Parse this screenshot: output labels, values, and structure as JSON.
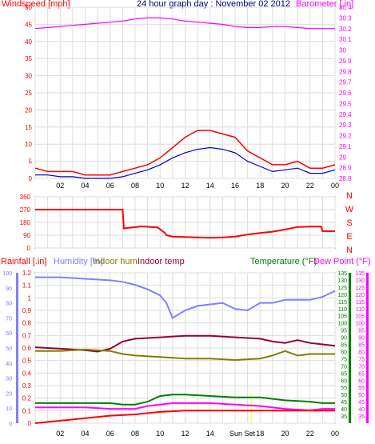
{
  "chart_data": [
    {
      "type": "line",
      "title": "24 hour graph day : November 02 2012",
      "ylabel_left": "Windspeed [mph]",
      "ylabel_right": "Barometer [.in]",
      "x_ticks": [
        "02",
        "04",
        "06",
        "08",
        "10",
        "12",
        "14",
        "16",
        "18",
        "20",
        "22",
        "00"
      ],
      "ylim_left": [
        0,
        50
      ],
      "yticks_left": [
        "0",
        "5",
        "10",
        "15",
        "20",
        "25",
        "30",
        "35",
        "40",
        "45",
        "50"
      ],
      "ylim_right": [
        28.8,
        30.4
      ],
      "yticks_right": [
        "28.8",
        "28.9",
        "29",
        "29.1",
        "29.2",
        "29.3",
        "29.4",
        "29.5",
        "29.6",
        "29.7",
        "29.8",
        "29.9",
        "30",
        "30.1",
        "30.2",
        "30.3",
        "30.4"
      ],
      "colors": {
        "gust": "#ff0000",
        "avg": "#0000cc",
        "baro": "#ff00ff"
      },
      "series": [
        {
          "axis": "right",
          "color": "#ff00ff",
          "x": [
            0,
            1,
            2,
            3,
            4,
            5,
            6,
            7,
            8,
            9,
            10,
            11,
            12,
            13,
            14,
            15,
            16,
            17,
            18,
            19,
            20,
            21,
            22,
            23,
            24
          ],
          "values": [
            30.2,
            30.21,
            30.22,
            30.23,
            30.24,
            30.25,
            30.26,
            30.27,
            30.29,
            30.3,
            30.3,
            30.29,
            30.27,
            30.26,
            30.25,
            30.24,
            30.22,
            30.21,
            30.21,
            30.22,
            30.22,
            30.21,
            30.2,
            30.2,
            30.2
          ]
        },
        {
          "axis": "left",
          "color": "#ff0000",
          "x": [
            0,
            1,
            2,
            3,
            4,
            5,
            6,
            7,
            8,
            9,
            10,
            11,
            12,
            13,
            14,
            15,
            16,
            17,
            18,
            19,
            20,
            21,
            22,
            23,
            24
          ],
          "values": [
            3,
            2,
            2,
            2,
            1,
            1,
            1,
            2,
            3,
            4,
            6,
            9,
            12,
            14,
            14,
            13,
            12,
            8,
            6,
            4,
            4,
            5,
            3,
            3,
            4
          ]
        },
        {
          "axis": "left",
          "color": "#0000cc",
          "x": [
            0,
            1,
            2,
            3,
            4,
            5,
            6,
            7,
            8,
            9,
            10,
            11,
            12,
            13,
            14,
            15,
            16,
            17,
            18,
            19,
            20,
            21,
            22,
            23,
            24
          ],
          "values": [
            1,
            1,
            0.5,
            0.5,
            0,
            0,
            0,
            0.5,
            1.5,
            2.5,
            4,
            6,
            7.5,
            8.5,
            9,
            8.5,
            7.5,
            5,
            3.5,
            2,
            2.5,
            3,
            1.5,
            1.5,
            2.5
          ]
        }
      ]
    },
    {
      "type": "line",
      "ylabel": "",
      "ylim": [
        0,
        360
      ],
      "yticks": [
        "0",
        "90",
        "180",
        "270",
        "360"
      ],
      "compass": [
        "N",
        "W",
        "S",
        "E",
        "N"
      ],
      "color": "#ff0000",
      "series": [
        {
          "x": [
            0,
            7,
            7.1,
            8.5,
            9.8,
            10.4,
            10.5,
            11,
            12,
            13,
            14,
            15,
            16,
            17,
            18,
            19,
            20,
            21,
            22,
            22.9,
            23,
            24
          ],
          "values": [
            270,
            270,
            138,
            152,
            145,
            105,
            90,
            80,
            77,
            75,
            72,
            75,
            80,
            95,
            105,
            115,
            130,
            148,
            150,
            150,
            118,
            118
          ]
        }
      ]
    },
    {
      "type": "line",
      "legend": [
        "Rainfall [.in]",
        "Humidity [%]",
        "Indoor hum",
        "Indoor temp",
        "Temperature (°F)",
        "Dew Point (°F)"
      ],
      "ylabel_rain": "Rainfall [.in]",
      "ylim_rain": [
        0,
        1.2
      ],
      "yticks_rain": [
        "0",
        "0.1",
        "0.2",
        "0.3",
        "0.4",
        "0.5",
        "0.6",
        "0.7",
        "0.8",
        "0.9",
        "1",
        "1.1",
        "1.2"
      ],
      "ylim_hum": [
        0,
        100
      ],
      "yticks_hum": [
        "0",
        "10",
        "20",
        "30",
        "40",
        "50",
        "60",
        "70",
        "80",
        "90",
        "100"
      ],
      "ylim_temp": [
        30,
        135
      ],
      "yticks_temp": [
        "35",
        "40",
        "45",
        "50",
        "55",
        "60",
        "65",
        "70",
        "75",
        "80",
        "85",
        "90",
        "95",
        "100",
        "105",
        "110",
        "115",
        "120",
        "125",
        "130",
        "135"
      ],
      "annotation": "Sun Set",
      "series": [
        {
          "name": "Humidity [%]",
          "color": "#8080ff",
          "axis": "hum",
          "x": [
            0,
            2,
            4,
            6,
            7,
            8,
            9,
            10,
            10.5,
            11,
            12,
            13,
            14,
            15,
            16,
            17,
            18,
            19,
            20,
            21,
            22,
            23,
            24
          ],
          "values": [
            97,
            97,
            96,
            95,
            94,
            92,
            89,
            85,
            80,
            70,
            75,
            78,
            79,
            80,
            76,
            75,
            80,
            80,
            82,
            82,
            82,
            84,
            88
          ]
        },
        {
          "name": "Indoor temp",
          "color": "#990033",
          "axis": "temp",
          "x": [
            0,
            2,
            4,
            5,
            6,
            7,
            8,
            10,
            12,
            14,
            16,
            18,
            19,
            20,
            21,
            22,
            23,
            24
          ],
          "values": [
            83,
            82,
            81,
            80,
            82,
            87,
            89,
            90,
            91,
            91,
            90,
            89,
            87,
            86,
            88,
            86,
            85,
            84
          ]
        },
        {
          "name": "Indoor hum",
          "color": "#808000",
          "axis": "hum",
          "x": [
            0,
            2,
            4,
            6,
            7,
            8,
            10,
            12,
            14,
            16,
            18,
            19,
            20,
            21,
            22,
            23,
            24
          ],
          "values": [
            48,
            48,
            49,
            48,
            46,
            45,
            44,
            43,
            43,
            42,
            43,
            45,
            48,
            45,
            46,
            46,
            46
          ]
        },
        {
          "name": "Temperature (°F)",
          "color": "#008000",
          "axis": "temp",
          "x": [
            0,
            2,
            4,
            6,
            7,
            8,
            9,
            10,
            11,
            12,
            14,
            16,
            18,
            20,
            22,
            23,
            24
          ],
          "values": [
            44,
            44,
            44,
            44,
            43,
            43,
            45,
            49,
            50,
            50,
            49,
            48,
            48,
            46,
            45,
            44,
            44
          ]
        },
        {
          "name": "Dew Point (°F)",
          "color": "#ff00ff",
          "axis": "temp",
          "x": [
            0,
            2,
            4,
            6,
            7,
            8,
            9,
            10,
            11,
            12,
            14,
            16,
            18,
            20,
            22,
            23,
            24
          ],
          "values": [
            41,
            41,
            41,
            40,
            40,
            40,
            42,
            43,
            44,
            44,
            44,
            43,
            42,
            40,
            39,
            40,
            40
          ]
        },
        {
          "name": "Rainfall [.in]",
          "color": "#ff0000",
          "axis": "rain",
          "x": [
            0,
            2,
            4,
            6,
            8,
            10,
            12,
            14,
            16,
            18,
            20,
            22,
            24
          ],
          "values": [
            0,
            0.02,
            0.04,
            0.06,
            0.07,
            0.09,
            0.1,
            0.1,
            0.1,
            0.1,
            0.1,
            0.1,
            0.1
          ]
        }
      ]
    }
  ]
}
